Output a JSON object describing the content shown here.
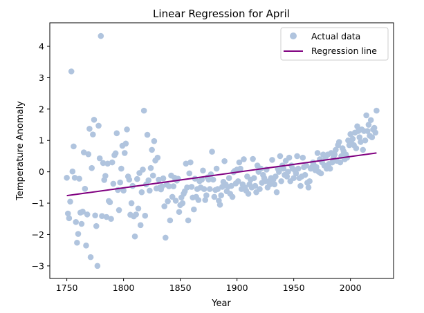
{
  "chart_data": {
    "type": "scatter",
    "title": "Linear Regression for April",
    "xlabel": "Year",
    "ylabel": "Temperature Anomaly",
    "xlim": [
      1735,
      2038
    ],
    "ylim": [
      -3.4,
      4.75
    ],
    "xticks": [
      1750,
      1800,
      1850,
      1900,
      1950,
      2000
    ],
    "yticks": [
      -3,
      -2,
      -1,
      0,
      1,
      2,
      3,
      4
    ],
    "grid": false,
    "legend_position": "top-right",
    "series": [
      {
        "name": "Actual data",
        "kind": "scatter",
        "color": "#b0c4de",
        "points": [
          [
            1750,
            -0.19
          ],
          [
            1751,
            -1.33
          ],
          [
            1752,
            -1.48
          ],
          [
            1753,
            -0.95
          ],
          [
            1754,
            3.2
          ],
          [
            1755,
            0.01
          ],
          [
            1756,
            0.81
          ],
          [
            1757,
            -0.19
          ],
          [
            1758,
            -1.6
          ],
          [
            1759,
            -2.26
          ],
          [
            1760,
            -1.98
          ],
          [
            1761,
            -0.22
          ],
          [
            1762,
            -1.3
          ],
          [
            1763,
            -1.66
          ],
          [
            1764,
            -1.27
          ],
          [
            1765,
            0.62
          ],
          [
            1766,
            -0.54
          ],
          [
            1767,
            -2.35
          ],
          [
            1768,
            -1.36
          ],
          [
            1769,
            0.56
          ],
          [
            1770,
            1.37
          ],
          [
            1771,
            -2.72
          ],
          [
            1772,
            0.12
          ],
          [
            1773,
            1.19
          ],
          [
            1774,
            1.66
          ],
          [
            1775,
            -1.39
          ],
          [
            1776,
            -1.73
          ],
          [
            1777,
            -3.0
          ],
          [
            1778,
            1.47
          ],
          [
            1779,
            0.43
          ],
          [
            1780,
            4.33
          ],
          [
            1781,
            -1.41
          ],
          [
            1782,
            0.28
          ],
          [
            1783,
            -0.26
          ],
          [
            1784,
            -0.13
          ],
          [
            1785,
            -1.44
          ],
          [
            1786,
            0.26
          ],
          [
            1787,
            -0.93
          ],
          [
            1788,
            -0.97
          ],
          [
            1789,
            -1.5
          ],
          [
            1790,
            0.3
          ],
          [
            1791,
            -0.38
          ],
          [
            1792,
            0.53
          ],
          [
            1793,
            0.59
          ],
          [
            1794,
            1.23
          ],
          [
            1795,
            -0.58
          ],
          [
            1796,
            -1.22
          ],
          [
            1797,
            -0.34
          ],
          [
            1798,
            0.1
          ],
          [
            1799,
            0.83
          ],
          [
            1800,
            -0.6
          ],
          [
            1801,
            0.6
          ],
          [
            1802,
            0.9
          ],
          [
            1803,
            1.35
          ],
          [
            1804,
            -0.15
          ],
          [
            1805,
            -0.25
          ],
          [
            1806,
            -1.37
          ],
          [
            1807,
            -1.0
          ],
          [
            1808,
            -0.45
          ],
          [
            1809,
            -1.42
          ],
          [
            1810,
            -2.06
          ],
          [
            1811,
            -1.36
          ],
          [
            1812,
            -0.23
          ],
          [
            1813,
            -1.17
          ],
          [
            1814,
            -0.04
          ],
          [
            1815,
            -1.7
          ],
          [
            1816,
            -0.65
          ],
          [
            1817,
            0.07
          ],
          [
            1818,
            1.95
          ],
          [
            1819,
            -1.4
          ],
          [
            1820,
            -0.4
          ],
          [
            1821,
            1.18
          ],
          [
            1822,
            -0.27
          ],
          [
            1823,
            -0.6
          ],
          [
            1824,
            0.12
          ],
          [
            1825,
            0.7
          ],
          [
            1826,
            -0.12
          ],
          [
            1827,
            0.98
          ],
          [
            1828,
            0.36
          ],
          [
            1829,
            -0.53
          ],
          [
            1830,
            0.45
          ],
          [
            1831,
            -0.25
          ],
          [
            1832,
            -0.5
          ],
          [
            1833,
            -0.56
          ],
          [
            1834,
            -0.46
          ],
          [
            1835,
            -0.21
          ],
          [
            1836,
            -1.1
          ],
          [
            1837,
            -2.1
          ],
          [
            1838,
            -0.41
          ],
          [
            1839,
            -0.94
          ],
          [
            1840,
            -0.46
          ],
          [
            1841,
            -1.55
          ],
          [
            1842,
            -0.12
          ],
          [
            1843,
            -0.8
          ],
          [
            1844,
            -0.46
          ],
          [
            1845,
            -0.19
          ],
          [
            1846,
            -0.92
          ],
          [
            1847,
            -0.28
          ],
          [
            1848,
            -0.22
          ],
          [
            1849,
            -1.28
          ],
          [
            1850,
            -1.06
          ],
          [
            1851,
            -0.82
          ],
          [
            1852,
            -1.0
          ],
          [
            1853,
            -0.7
          ],
          [
            1854,
            -0.62
          ],
          [
            1855,
            0.26
          ],
          [
            1856,
            -0.5
          ],
          [
            1857,
            -1.55
          ],
          [
            1858,
            -0.05
          ],
          [
            1859,
            0.3
          ],
          [
            1860,
            -0.48
          ],
          [
            1861,
            -0.82
          ],
          [
            1862,
            -1.2
          ],
          [
            1863,
            -0.22
          ],
          [
            1864,
            -0.8
          ],
          [
            1865,
            -0.55
          ],
          [
            1866,
            -0.9
          ],
          [
            1867,
            -0.3
          ],
          [
            1868,
            -0.5
          ],
          [
            1869,
            -0.25
          ],
          [
            1870,
            0.04
          ],
          [
            1871,
            -0.55
          ],
          [
            1872,
            -0.9
          ],
          [
            1873,
            -0.75
          ],
          [
            1874,
            -0.18
          ],
          [
            1875,
            -0.25
          ],
          [
            1876,
            -0.55
          ],
          [
            1877,
            -0.08
          ],
          [
            1878,
            0.64
          ],
          [
            1879,
            -0.25
          ],
          [
            1880,
            -0.8
          ],
          [
            1881,
            -0.58
          ],
          [
            1882,
            0.1
          ],
          [
            1883,
            -0.55
          ],
          [
            1884,
            -0.92
          ],
          [
            1885,
            -1.05
          ],
          [
            1886,
            -0.75
          ],
          [
            1887,
            -0.48
          ],
          [
            1888,
            -0.32
          ],
          [
            1889,
            0.34
          ],
          [
            1890,
            -0.4
          ],
          [
            1891,
            -0.62
          ],
          [
            1892,
            -0.48
          ],
          [
            1893,
            -0.2
          ],
          [
            1894,
            -0.7
          ],
          [
            1895,
            -0.45
          ],
          [
            1896,
            -0.8
          ],
          [
            1897,
            -0.01
          ],
          [
            1898,
            0.03
          ],
          [
            1899,
            -0.37
          ],
          [
            1900,
            0.07
          ],
          [
            1901,
            -0.3
          ],
          [
            1902,
            0.3
          ],
          [
            1903,
            0.1
          ],
          [
            1904,
            -0.55
          ],
          [
            1905,
            -0.4
          ],
          [
            1906,
            0.4
          ],
          [
            1907,
            -0.5
          ],
          [
            1908,
            -0.6
          ],
          [
            1909,
            -0.15
          ],
          [
            1910,
            -0.7
          ],
          [
            1911,
            -0.4
          ],
          [
            1912,
            -0.25
          ],
          [
            1913,
            -0.5
          ],
          [
            1914,
            0.41
          ],
          [
            1915,
            -0.2
          ],
          [
            1916,
            -0.45
          ],
          [
            1917,
            -0.65
          ],
          [
            1918,
            0.2
          ],
          [
            1919,
            0.0
          ],
          [
            1920,
            -0.55
          ],
          [
            1921,
            0.1
          ],
          [
            1922,
            -0.35
          ],
          [
            1923,
            -0.1
          ],
          [
            1924,
            -0.2
          ],
          [
            1925,
            -0.3
          ],
          [
            1926,
            0.07
          ],
          [
            1927,
            -0.5
          ],
          [
            1928,
            -0.3
          ],
          [
            1929,
            -0.4
          ],
          [
            1930,
            -0.2
          ],
          [
            1931,
            0.38
          ],
          [
            1932,
            -0.25
          ],
          [
            1933,
            -0.4
          ],
          [
            1934,
            -0.15
          ],
          [
            1935,
            -0.65
          ],
          [
            1936,
            0.1
          ],
          [
            1937,
            0.0
          ],
          [
            1938,
            0.5
          ],
          [
            1939,
            -0.3
          ],
          [
            1940,
            0.2
          ],
          [
            1941,
            0.1
          ],
          [
            1942,
            -0.1
          ],
          [
            1943,
            0.35
          ],
          [
            1944,
            -0.15
          ],
          [
            1945,
            0.0
          ],
          [
            1946,
            0.45
          ],
          [
            1947,
            -0.3
          ],
          [
            1948,
            0.2
          ],
          [
            1949,
            0.1
          ],
          [
            1950,
            -0.2
          ],
          [
            1951,
            0.05
          ],
          [
            1952,
            -0.05
          ],
          [
            1953,
            0.5
          ],
          [
            1954,
            0.1
          ],
          [
            1955,
            -0.2
          ],
          [
            1956,
            -0.45
          ],
          [
            1957,
            -0.15
          ],
          [
            1958,
            0.45
          ],
          [
            1959,
            0.15
          ],
          [
            1960,
            -0.1
          ],
          [
            1961,
            0.2
          ],
          [
            1962,
            -0.35
          ],
          [
            1963,
            -0.5
          ],
          [
            1964,
            -0.3
          ],
          [
            1965,
            0.1
          ],
          [
            1966,
            0.15
          ],
          [
            1967,
            0.3
          ],
          [
            1968,
            0.2
          ],
          [
            1969,
            0.05
          ],
          [
            1970,
            0.15
          ],
          [
            1971,
            0.6
          ],
          [
            1972,
            0.0
          ],
          [
            1973,
            0.4
          ],
          [
            1974,
            -0.05
          ],
          [
            1975,
            0.3
          ],
          [
            1976,
            0.55
          ],
          [
            1977,
            0.2
          ],
          [
            1978,
            0.45
          ],
          [
            1979,
            0.1
          ],
          [
            1980,
            0.55
          ],
          [
            1981,
            0.25
          ],
          [
            1982,
            0.1
          ],
          [
            1983,
            0.6
          ],
          [
            1984,
            0.3
          ],
          [
            1985,
            0.45
          ],
          [
            1986,
            0.55
          ],
          [
            1987,
            0.7
          ],
          [
            1988,
            0.35
          ],
          [
            1989,
            0.85
          ],
          [
            1990,
            0.95
          ],
          [
            1991,
            0.3
          ],
          [
            1992,
            0.5
          ],
          [
            1993,
            0.75
          ],
          [
            1994,
            0.65
          ],
          [
            1995,
            0.4
          ],
          [
            1996,
            0.55
          ],
          [
            1997,
            0.45
          ],
          [
            1998,
            1.0
          ],
          [
            1999,
            0.85
          ],
          [
            2000,
            1.2
          ],
          [
            2001,
            0.9
          ],
          [
            2002,
            1.05
          ],
          [
            2003,
            0.85
          ],
          [
            2004,
            1.25
          ],
          [
            2005,
            0.75
          ],
          [
            2006,
            1.45
          ],
          [
            2007,
            1.3
          ],
          [
            2008,
            1.1
          ],
          [
            2009,
            0.95
          ],
          [
            2010,
            1.35
          ],
          [
            2011,
            0.7
          ],
          [
            2012,
            1.3
          ],
          [
            2013,
            1.0
          ],
          [
            2014,
            1.8
          ],
          [
            2015,
            1.3
          ],
          [
            2016,
            1.5
          ],
          [
            2017,
            1.15
          ],
          [
            2018,
            1.65
          ],
          [
            2019,
            1.1
          ],
          [
            2020,
            1.35
          ],
          [
            2021,
            1.4
          ],
          [
            2022,
            1.25
          ],
          [
            2023,
            1.95
          ]
        ]
      },
      {
        "name": "Regression line",
        "kind": "line",
        "color": "#800080",
        "x": [
          1750,
          2023
        ],
        "y": [
          -0.76,
          0.6
        ]
      }
    ]
  }
}
